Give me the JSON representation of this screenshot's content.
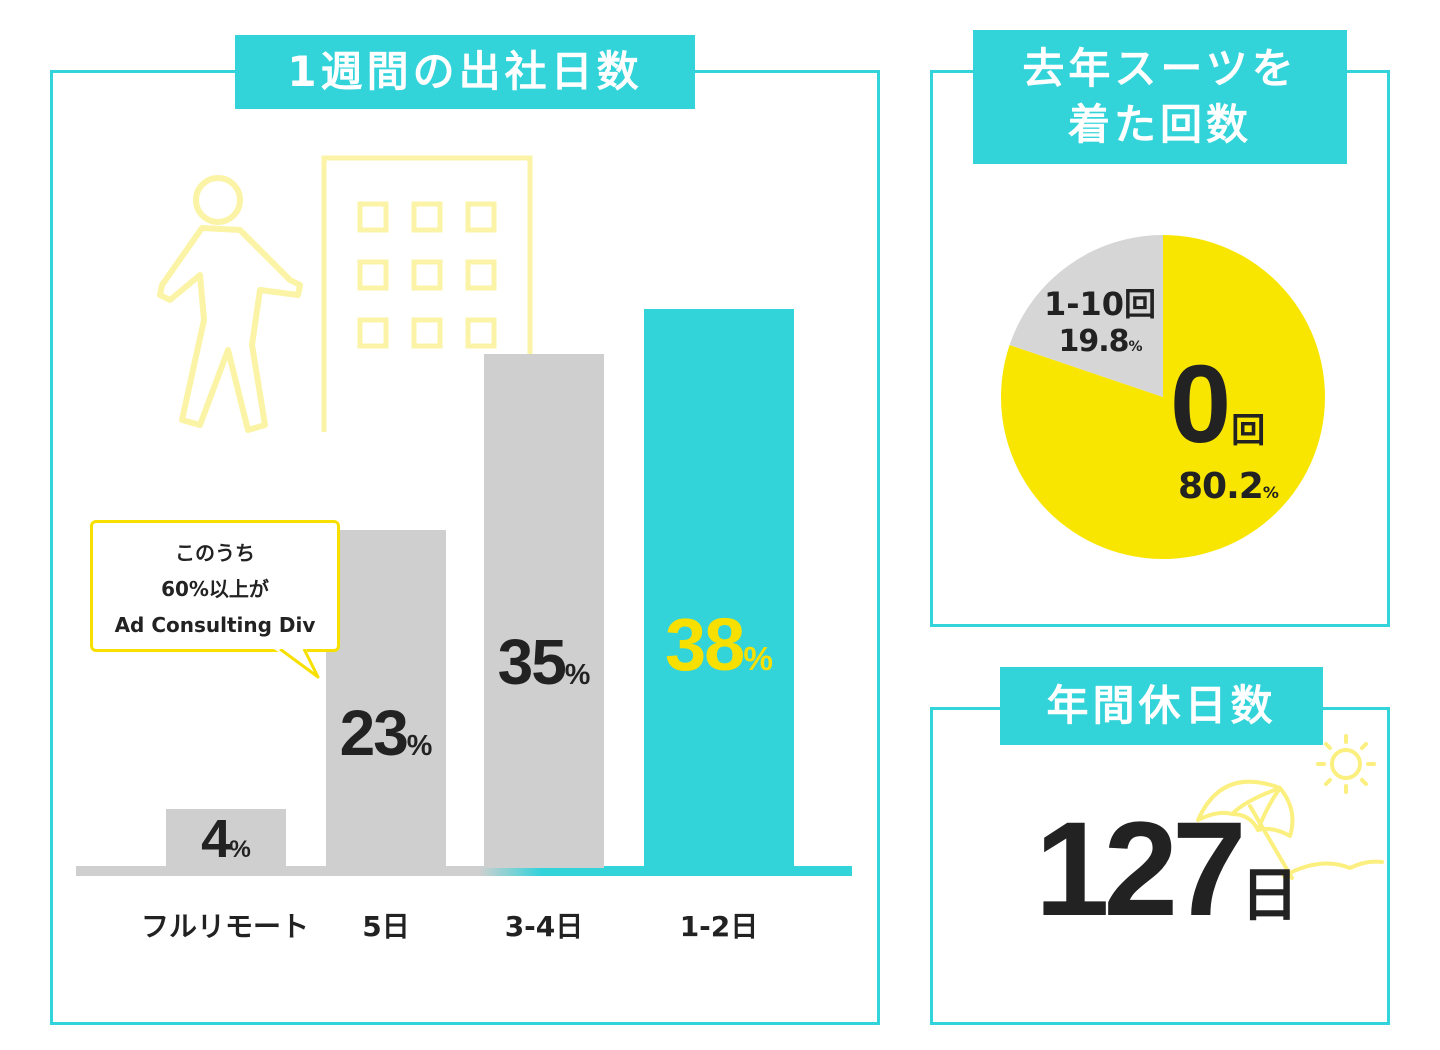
{
  "panel_weekly": {
    "title": "1週間の出社日数",
    "callout": [
      "このうち",
      "60%以上が",
      "Ad Consulting Div"
    ]
  },
  "panel_suit": {
    "title_line1": "去年スーツを",
    "title_line2": "着た回数"
  },
  "panel_holidays": {
    "title": "年間休日数",
    "value": "127",
    "unit": "日"
  },
  "chart_data": [
    {
      "type": "bar",
      "title": "1週間の出社日数",
      "categories": [
        "フルリモート",
        "5日",
        "3-4日",
        "1-2日"
      ],
      "values": [
        4,
        23,
        35,
        38
      ],
      "value_labels": [
        "4",
        "23",
        "35",
        "38"
      ],
      "unit": "%",
      "colors": [
        "#cfcfcf",
        "#cfcfcf",
        "#cfcfcf",
        "#33d3da"
      ],
      "label_colors": [
        "#222222",
        "#222222",
        "#222222",
        "#f7e000"
      ],
      "xlabel": "",
      "ylabel": "",
      "ylim": [
        0,
        40
      ]
    },
    {
      "type": "pie",
      "title": "去年スーツを着た回数",
      "slices": [
        {
          "label": "0",
          "unit_label": "回",
          "value": 80.2,
          "value_label": "80.2",
          "color": "#f9e600"
        },
        {
          "label": "1-10回",
          "value": 19.8,
          "value_label": "19.8",
          "color": "#d6d6d6"
        }
      ],
      "pct_unit": "%"
    }
  ]
}
